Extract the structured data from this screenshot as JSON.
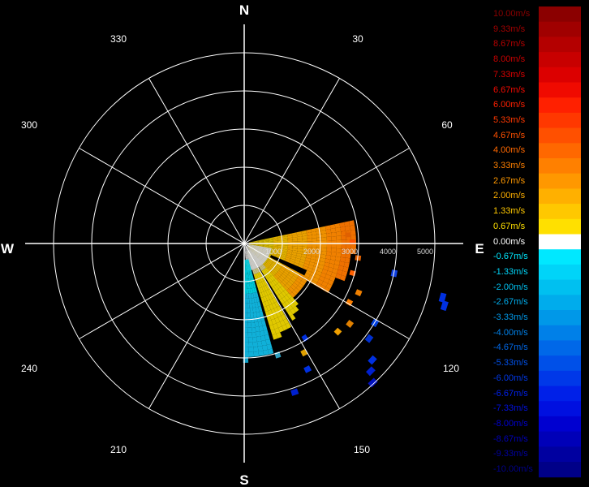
{
  "compass": {
    "north": "N",
    "south": "S",
    "east": "E",
    "west": "W",
    "degrees": [
      "30",
      "60",
      "120",
      "150",
      "210",
      "240",
      "300",
      "330"
    ]
  },
  "range_labels": [
    "1000",
    "2000",
    "3000",
    "4000",
    "5000"
  ],
  "legend": {
    "entries": [
      {
        "label": "10.00m/s",
        "color": "#8b0000"
      },
      {
        "label": "9.33m/s",
        "color": "#a00000"
      },
      {
        "label": "8.67m/s",
        "color": "#b40000"
      },
      {
        "label": "8.00m/s",
        "color": "#c80000"
      },
      {
        "label": "7.33m/s",
        "color": "#dc0000"
      },
      {
        "label": "6.67m/s",
        "color": "#f00a00"
      },
      {
        "label": "6.00m/s",
        "color": "#ff2000"
      },
      {
        "label": "5.33m/s",
        "color": "#ff3800"
      },
      {
        "label": "4.67m/s",
        "color": "#ff5000"
      },
      {
        "label": "4.00m/s",
        "color": "#ff6800"
      },
      {
        "label": "3.33m/s",
        "color": "#ff8000"
      },
      {
        "label": "2.67m/s",
        "color": "#ff9800"
      },
      {
        "label": "2.00m/s",
        "color": "#ffb000"
      },
      {
        "label": "1.33m/s",
        "color": "#ffc800"
      },
      {
        "label": "0.67m/s",
        "color": "#ffe000"
      },
      {
        "label": "0.00m/s",
        "color": "#ffffff"
      },
      {
        "label": "-0.67m/s",
        "color": "#00e8ff"
      },
      {
        "label": "-1.33m/s",
        "color": "#00d4f8"
      },
      {
        "label": "-2.00m/s",
        "color": "#00c0f0"
      },
      {
        "label": "-2.67m/s",
        "color": "#00acec"
      },
      {
        "label": "-3.33m/s",
        "color": "#0098e8"
      },
      {
        "label": "-4.00m/s",
        "color": "#0080e8"
      },
      {
        "label": "-4.67m/s",
        "color": "#0068e8"
      },
      {
        "label": "-5.33m/s",
        "color": "#0050e8"
      },
      {
        "label": "-6.00m/s",
        "color": "#0038e8"
      },
      {
        "label": "-6.67m/s",
        "color": "#0020e8"
      },
      {
        "label": "-7.33m/s",
        "color": "#0010e0"
      },
      {
        "label": "-8.00m/s",
        "color": "#0000d0"
      },
      {
        "label": "-8.67m/s",
        "color": "#0000b8"
      },
      {
        "label": "-9.33m/s",
        "color": "#0000a0"
      },
      {
        "label": "-10.00m/s",
        "color": "#000088"
      }
    ]
  }
}
